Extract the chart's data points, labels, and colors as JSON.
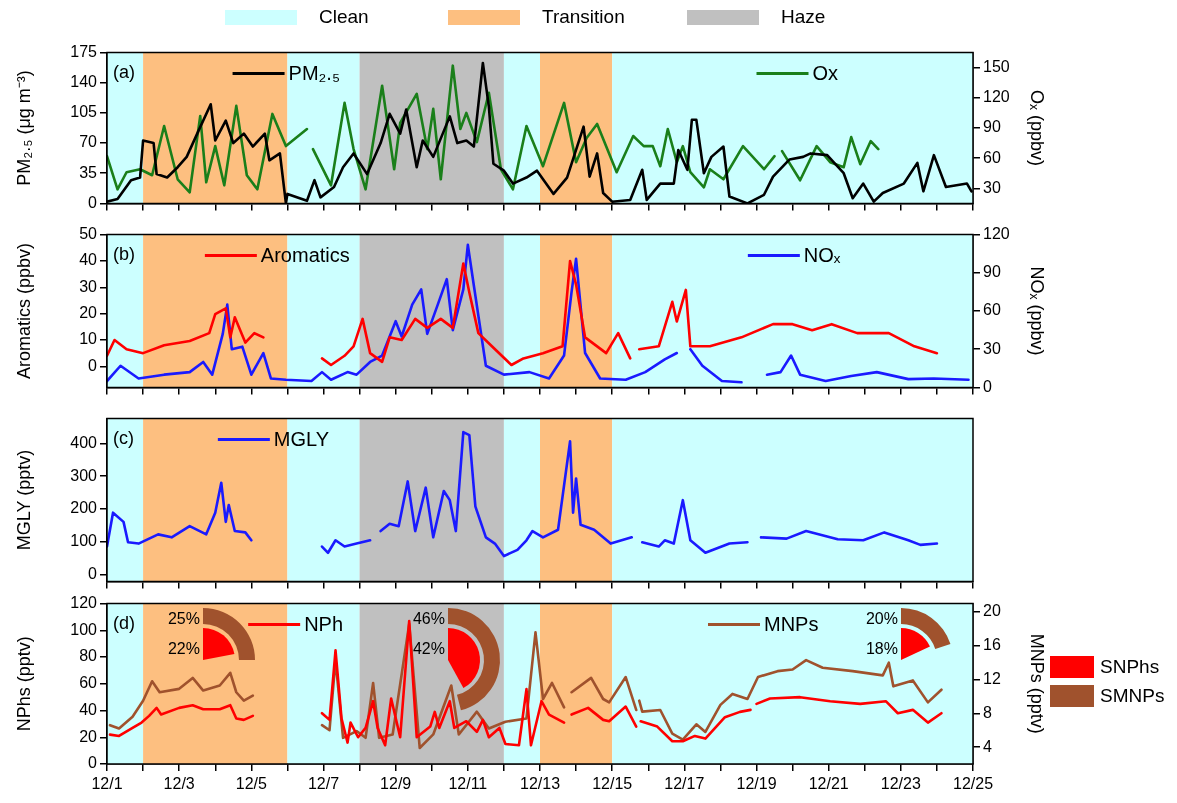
{
  "chart_data": [
    {
      "type": "line",
      "ylabel": "PM₂.₅ (μg m⁻³)",
      "y2label": "Oₓ (ppbv)",
      "annotations": [
        "(a)"
      ],
      "legend": "top",
      "tick_labels": "y",
      "xlim": [
        "--12-01",
        "--12-25"
      ],
      "xticks": [
        {
          "value": "--12-01",
          "label": null
        },
        {
          "value": "--12-02",
          "label": null
        },
        {
          "value": "--12-03",
          "label": null
        },
        {
          "value": "--12-04",
          "label": null
        },
        {
          "value": "--12-05",
          "label": null
        },
        {
          "value": "--12-06",
          "label": null
        },
        {
          "value": "--12-07",
          "label": null
        },
        {
          "value": "--12-08",
          "label": null
        },
        {
          "value": "--12-09",
          "label": null
        },
        {
          "value": "--12-10",
          "label": null
        },
        {
          "value": "--12-11",
          "label": null
        },
        {
          "value": "--12-12",
          "label": null
        },
        {
          "value": "--12-13",
          "label": null
        },
        {
          "value": "--12-14",
          "label": null
        },
        {
          "value": "--12-15",
          "label": null
        },
        {
          "value": "--12-16",
          "label": null
        },
        {
          "value": "--12-17",
          "label": null
        },
        {
          "value": "--12-18",
          "label": null
        },
        {
          "value": "--12-19",
          "label": null
        },
        {
          "value": "--12-20",
          "label": null
        },
        {
          "value": "--12-21",
          "label": null
        },
        {
          "value": "--12-22",
          "label": null
        },
        {
          "value": "--12-23",
          "label": null
        },
        {
          "value": "--12-24",
          "label": null
        },
        {
          "value": "--12-25",
          "label": null
        }
      ],
      "ylim": [
        0,
        175
      ],
      "yticks": [
        0,
        35,
        70,
        105,
        140,
        175
      ],
      "y2lim": [
        15,
        165
      ],
      "y2ticks": [
        30,
        60,
        90,
        120,
        150
      ],
      "bands": [
        {
          "axis": "x",
          "from": "--12-01",
          "to": "--12-02",
          "label": "Clean",
          "color": "#ccffff"
        },
        {
          "axis": "x",
          "from": "--12-02",
          "to": "--12-06",
          "label": "Transition",
          "color": "#fdbf80"
        },
        {
          "axis": "x",
          "from": "--12-06",
          "to": "--12-08",
          "color": "#ccffff"
        },
        {
          "axis": "x",
          "from": "--12-08",
          "to": "--12-12",
          "label": "Haze",
          "color": "#c0c0c0"
        },
        {
          "axis": "x",
          "from": "--12-12",
          "to": "--12-13",
          "color": "#ccffff"
        },
        {
          "axis": "x",
          "from": "--12-13",
          "to": "--12-15",
          "color": "#fdbf80"
        },
        {
          "axis": "x",
          "from": "--12-15",
          "to": "--12-25",
          "color": "#ccffff"
        }
      ],
      "series": [
        {
          "name": "PM₂.₅",
          "color": "#000000",
          "x": [
            "--12-01T00:00",
            "--12-01T07:00",
            "--12-01T16:00",
            "--12-01T22:00",
            "--12-02T00:00",
            "--12-02T07:00",
            "--12-02T09:00",
            "--12-02T16:00",
            "--12-02T23:00",
            "--12-03T05:00",
            "--12-03T12:00",
            "--12-03T21:00",
            "--12-04T00:00",
            "--12-04T07:00",
            "--12-04T12:00",
            "--12-04T19:00",
            "--12-05T01:00",
            "--12-05T09:00",
            "--12-05T12:00",
            "--12-05T19:00",
            "--12-05T23:00",
            "--12-06T00:00",
            "--12-06T13:00",
            "--12-06T18:00",
            "--12-06T22:00",
            "--12-07T07:00",
            "--12-07T13:00",
            "--12-07T20:00",
            "--12-08T05:00",
            "--12-08T14:00",
            "--12-08T20:00",
            "--12-09T03:00",
            "--12-09T07:00",
            "--12-09T14:00",
            "--12-09T18:00",
            "--12-10T01:00",
            "--12-10T12:00",
            "--12-10T17:00",
            "--12-10T23:00",
            "--12-11T04:00",
            "--12-11T10:00",
            "--12-11T14:00",
            "--12-11T17:00",
            "--12-12T00:00",
            "--12-12T06:00",
            "--12-12T15:00",
            "--12-12T22:00",
            "--12-13T09:00",
            "--12-13T18:00",
            "--12-14T05:00",
            "--12-14T09:00",
            "--12-14T14:00",
            "--12-14T18:00",
            "--12-15T00:00",
            "--12-15T12:00",
            "--12-15T20:00",
            "--12-15T23:00",
            "--12-16T08:00",
            "--12-16T17:00",
            "--12-16T20:00",
            "--12-17T02:00",
            "--12-17T05:00",
            "--12-17T08:00",
            "--12-17T13:00",
            "--12-17T18:00",
            "--12-18T02:00",
            "--12-18T06:00",
            "--12-18T18:00",
            "--12-19T05:00",
            "--12-19T11:00",
            "--12-19T22:00",
            "--12-20T07:00",
            "--12-20T12:00",
            "--12-20T23:00",
            "--12-21T10:00",
            "--12-21T16:00",
            "--12-21T23:00",
            "--12-22T06:00",
            "--12-22T12:00",
            "--12-23T02:00",
            "--12-23T11:00",
            "--12-23T15:00",
            "--12-23T22:00",
            "--12-24T06:00",
            "--12-24T20:00",
            "--12-24T23:00"
          ],
          "values": [
            2,
            5,
            27,
            30,
            73,
            70,
            34,
            30,
            42,
            54,
            81,
            115,
            73,
            96,
            70,
            81,
            66,
            81,
            50,
            58,
            0,
            11,
            3,
            27,
            7,
            19,
            42,
            58,
            34,
            70,
            104,
            81,
            109,
            42,
            73,
            54,
            101,
            70,
            73,
            66,
            163,
            112,
            46,
            38,
            23,
            30,
            38,
            11,
            30,
            89,
            31,
            58,
            12,
            2,
            4,
            39,
            4,
            23,
            23,
            62,
            39,
            97,
            97,
            35,
            54,
            66,
            8,
            0,
            10,
            31,
            51,
            54,
            58,
            56,
            35,
            6,
            23,
            2,
            12,
            23,
            47,
            14,
            56,
            19,
            23,
            14
          ]
        },
        {
          "name": "Ox",
          "color": "#1a7f1a",
          "axis": "y2",
          "x": [
            "--12-01T00:00",
            "--12-01T07:00",
            "--12-01T13:00",
            "--12-01T22:00",
            "--12-02T06:00",
            "--12-02T14:00",
            "--12-02T23:00",
            "--12-03T07:00",
            "--12-03T14:00",
            "--12-03T18:00",
            "--12-04T00:00",
            "--12-04T06:00",
            "--12-04T14:00",
            "--12-04T21:00",
            "--12-05T04:00",
            "--12-05T14:00",
            "--12-05T23:00",
            "--12-06T13:00",
            "--12-06T15:00",
            "--12-06T17:00",
            "--12-07T05:00",
            "--12-07T14:00",
            "--12-07T20:00",
            "--12-08T04:00",
            "--12-08T15:00",
            "--12-08T23:00",
            "--12-09T03:00",
            "--12-09T14:00",
            "--12-09T21:00",
            "--12-10T01:00",
            "--12-10T06:00",
            "--12-10T14:00",
            "--12-10T19:00",
            "--12-10T23:00",
            "--12-11T06:00",
            "--12-11T14:00",
            "--12-11T22:00",
            "--12-12T06:00",
            "--12-12T15:00",
            "--12-13T02:00",
            "--12-13T16:00",
            "--12-14T00:00",
            "--12-14T07:00",
            "--12-14T14:00",
            "--12-15T03:00",
            "--12-15T14:00",
            "--12-15T21:00",
            "--12-16T03:00",
            "--12-16T08:00",
            "--12-16T13:00",
            "--12-16T19:00",
            "--12-16T23:00",
            "--12-17T04:00",
            "--12-17T13:00",
            "--12-17T17:00",
            "--12-18T02:00",
            "--12-18T15:00",
            "--12-19T05:00",
            "--12-19T12:00",
            "--12-19T14:00",
            "--12-19T17:00",
            "--12-20T05:00",
            "--12-20T16:00",
            "--12-21T01:00",
            "--12-21T10:00",
            "--12-21T15:00",
            "--12-21T21:00",
            "--12-22T04:00",
            "--12-22T09:00"
          ],
          "values": [
            62,
            29,
            46,
            49,
            43,
            92,
            39,
            26,
            102,
            36,
            72,
            33,
            112,
            43,
            29,
            104,
            72,
            89,
            null,
            69,
            33,
            115,
            69,
            29,
            132,
            49,
            95,
            124,
            69,
            109,
            39,
            152,
            89,
            105,
            76,
            125,
            49,
            29,
            92,
            52,
            115,
            56,
            80,
            94,
            46,
            82,
            72,
            72,
            52,
            89,
            56,
            72,
            46,
            31,
            49,
            39,
            72,
            49,
            62,
            null,
            67,
            38,
            72,
            56,
            51,
            81,
            54,
            77,
            69
          ]
        }
      ]
    },
    {
      "type": "line",
      "ylabel": "Aromatics (ppbv)",
      "y2label": "NOₓ (ppbv)",
      "annotations": [
        "(b)"
      ],
      "legend": "top",
      "tick_labels": "y",
      "xlim": [
        "--12-01",
        "--12-25"
      ],
      "xticks": [
        {
          "value": "--12-01",
          "label": null
        },
        {
          "value": "--12-02",
          "label": null
        },
        {
          "value": "--12-03",
          "label": null
        },
        {
          "value": "--12-04",
          "label": null
        },
        {
          "value": "--12-05",
          "label": null
        },
        {
          "value": "--12-06",
          "label": null
        },
        {
          "value": "--12-07",
          "label": null
        },
        {
          "value": "--12-08",
          "label": null
        },
        {
          "value": "--12-09",
          "label": null
        },
        {
          "value": "--12-10",
          "label": null
        },
        {
          "value": "--12-11",
          "label": null
        },
        {
          "value": "--12-12",
          "label": null
        },
        {
          "value": "--12-13",
          "label": null
        },
        {
          "value": "--12-14",
          "label": null
        },
        {
          "value": "--12-15",
          "label": null
        },
        {
          "value": "--12-16",
          "label": null
        },
        {
          "value": "--12-17",
          "label": null
        },
        {
          "value": "--12-18",
          "label": null
        },
        {
          "value": "--12-19",
          "label": null
        },
        {
          "value": "--12-20",
          "label": null
        },
        {
          "value": "--12-21",
          "label": null
        },
        {
          "value": "--12-22",
          "label": null
        },
        {
          "value": "--12-23",
          "label": null
        },
        {
          "value": "--12-24",
          "label": null
        },
        {
          "value": "--12-25",
          "label": null
        }
      ],
      "ylim": [
        -8,
        50
      ],
      "yticks": [
        0,
        10,
        20,
        30,
        40,
        50
      ],
      "y2lim": [
        0,
        120
      ],
      "y2ticks": [
        0,
        30,
        60,
        90,
        120
      ],
      "bands": [
        {
          "axis": "x",
          "from": "--12-01",
          "to": "--12-02",
          "color": "#ccffff"
        },
        {
          "axis": "x",
          "from": "--12-02",
          "to": "--12-06",
          "color": "#fdbf80"
        },
        {
          "axis": "x",
          "from": "--12-06",
          "to": "--12-08",
          "color": "#ccffff"
        },
        {
          "axis": "x",
          "from": "--12-08",
          "to": "--12-12",
          "color": "#c0c0c0"
        },
        {
          "axis": "x",
          "from": "--12-12",
          "to": "--12-13",
          "color": "#ccffff"
        },
        {
          "axis": "x",
          "from": "--12-13",
          "to": "--12-15",
          "color": "#fdbf80"
        },
        {
          "axis": "x",
          "from": "--12-15",
          "to": "--12-25",
          "color": "#ccffff"
        }
      ],
      "series": [
        {
          "name": "Aromatics",
          "color": "#ff0000",
          "x": [
            "--12-01T00:00",
            "--12-01T05:00",
            "--12-01T13:00",
            "--12-02T00:00",
            "--12-02T14:00",
            "--12-03T07:00",
            "--12-03T20:00",
            "--12-04T00:00",
            "--12-04T07:00",
            "--12-04T10:00",
            "--12-04T13:00",
            "--12-04T20:00",
            "--12-05T02:00",
            "--12-05T08:00",
            "--12-06T02:00",
            "--12-06T23:00",
            "--12-07T05:00",
            "--12-07T14:00",
            "--12-07T20:00",
            "--12-08T02:00",
            "--12-08T07:00",
            "--12-08T15:00",
            "--12-08T20:00",
            "--12-09T04:00",
            "--12-09T13:00",
            "--12-09T21:00",
            "--12-10T06:00",
            "--12-10T14:00",
            "--12-10T21:00",
            "--12-11T01:00",
            "--12-11T07:00",
            "--12-11T16:00",
            "--12-12T05:00",
            "--12-12T13:00",
            "--12-13T02:00",
            "--12-13T15:00",
            "--12-13T20:00",
            "--12-14T00:00",
            "--12-14T06:00",
            "--12-14T20:00",
            "--12-15T04:00",
            "--12-15T12:00",
            "--12-15T14:00",
            "--12-15T18:00",
            "--12-16T07:00",
            "--12-16T16:00",
            "--12-16T19:00",
            "--12-17T01:00",
            "--12-17T04:00",
            "--12-17T17:00",
            "--12-18T14:00",
            "--12-19T11:00",
            "--12-20T00:00",
            "--12-20T13:00",
            "--12-21T02:00",
            "--12-21T19:00",
            "--12-22T16:00",
            "--12-23T09:00",
            "--12-24T00:00"
          ],
          "values": [
            4,
            10,
            6.5,
            5,
            8,
            9.6,
            12.6,
            19.8,
            22,
            11,
            18.6,
            9,
            12.6,
            11,
            null,
            3,
            0.5,
            4,
            7.6,
            18,
            5,
            1.7,
            11,
            10,
            18,
            14.6,
            18,
            14.6,
            39,
            28,
            12.6,
            7.6,
            0.5,
            3,
            5,
            7.6,
            40,
            31,
            11,
            5,
            12.6,
            3,
            null,
            6.5,
            7.6,
            24.5,
            17,
            29,
            7.6,
            7.6,
            11,
            16,
            16,
            13.7,
            16,
            12.6,
            12.6,
            7.6,
            5
          ]
        },
        {
          "name": "NOₓ",
          "color": "#1a1aff",
          "axis": "y2",
          "x": [
            "--12-01T00:00",
            "--12-01T09:00",
            "--12-01T21:00",
            "--12-02T14:00",
            "--12-03T07:00",
            "--12-03T16:00",
            "--12-03T22:00",
            "--12-04T05:00",
            "--12-04T08:00",
            "--12-04T11:00",
            "--12-04T18:00",
            "--12-05T00:00",
            "--12-05T08:00",
            "--12-05T13:00",
            "--12-05T23:00",
            "--12-06T16:00",
            "--12-06T23:00",
            "--12-07T05:00",
            "--12-07T16:00",
            "--12-07T22:00",
            "--12-08T07:00",
            "--12-08T15:00",
            "--12-09T00:00",
            "--12-09T04:00",
            "--12-09T11:00",
            "--12-09T17:00",
            "--12-09T21:00",
            "--12-10T04:00",
            "--12-10T10:00",
            "--12-10T14:00",
            "--12-10T21:00",
            "--12-11T00:00",
            "--12-11T04:00",
            "--12-11T12:00",
            "--12-12T00:00",
            "--12-12T17:00",
            "--12-13T06:00",
            "--12-13T16:00",
            "--12-13T21:00",
            "--12-14T00:00",
            "--12-14T06:00",
            "--12-14T16:00",
            "--12-15T09:00",
            "--12-15T22:00",
            "--12-16T11:00",
            "--12-16T19:00",
            "--12-17T00:00",
            "--12-17T04:00",
            "--12-17T12:00",
            "--12-18T01:00",
            "--12-18T14:00",
            "--12-19T05:00",
            "--12-19T07:00",
            "--12-19T16:00",
            "--12-19T23:00",
            "--12-20T05:00",
            "--12-20T22:00",
            "--12-21T15:00",
            "--12-22T08:00",
            "--12-23T05:00",
            "--12-23T22:00",
            "--12-24T21:00"
          ],
          "values": [
            5,
            17,
            7,
            10,
            12,
            20,
            10,
            42,
            65,
            30,
            32,
            10,
            27,
            7,
            6,
            5,
            12,
            6,
            12,
            10,
            20,
            25,
            52,
            40,
            65,
            77,
            42,
            65,
            85,
            45,
            77,
            112,
            80,
            17,
            10,
            12,
            7,
            25,
            75,
            101,
            27,
            7,
            6,
            12,
            22,
            27,
            null,
            30,
            17,
            5,
            4,
            null,
            10,
            12,
            25,
            10,
            5,
            9,
            12,
            6.5,
            7,
            6
          ]
        }
      ]
    },
    {
      "type": "line",
      "ylabel": "MGLY (pptv)",
      "annotations": [
        "(c)"
      ],
      "legend": "top",
      "tick_labels": "y",
      "xlim": [
        "--12-01",
        "--12-25"
      ],
      "xticks": [
        {
          "value": "--12-01",
          "label": null
        },
        {
          "value": "--12-02",
          "label": null
        },
        {
          "value": "--12-03",
          "label": null
        },
        {
          "value": "--12-04",
          "label": null
        },
        {
          "value": "--12-05",
          "label": null
        },
        {
          "value": "--12-06",
          "label": null
        },
        {
          "value": "--12-07",
          "label": null
        },
        {
          "value": "--12-08",
          "label": null
        },
        {
          "value": "--12-09",
          "label": null
        },
        {
          "value": "--12-10",
          "label": null
        },
        {
          "value": "--12-11",
          "label": null
        },
        {
          "value": "--12-12",
          "label": null
        },
        {
          "value": "--12-13",
          "label": null
        },
        {
          "value": "--12-14",
          "label": null
        },
        {
          "value": "--12-15",
          "label": null
        },
        {
          "value": "--12-16",
          "label": null
        },
        {
          "value": "--12-17",
          "label": null
        },
        {
          "value": "--12-18",
          "label": null
        },
        {
          "value": "--12-19",
          "label": null
        },
        {
          "value": "--12-20",
          "label": null
        },
        {
          "value": "--12-21",
          "label": null
        },
        {
          "value": "--12-22",
          "label": null
        },
        {
          "value": "--12-23",
          "label": null
        },
        {
          "value": "--12-24",
          "label": null
        },
        {
          "value": "--12-25",
          "label": null
        }
      ],
      "ylim": [
        -20,
        475
      ],
      "yticks": [
        0,
        100,
        200,
        300,
        400
      ],
      "bands": [
        {
          "axis": "x",
          "from": "--12-01",
          "to": "--12-02",
          "color": "#ccffff"
        },
        {
          "axis": "x",
          "from": "--12-02",
          "to": "--12-06",
          "color": "#fdbf80"
        },
        {
          "axis": "x",
          "from": "--12-06",
          "to": "--12-08",
          "color": "#ccffff"
        },
        {
          "axis": "x",
          "from": "--12-08",
          "to": "--12-12",
          "color": "#c0c0c0"
        },
        {
          "axis": "x",
          "from": "--12-12",
          "to": "--12-13",
          "color": "#ccffff"
        },
        {
          "axis": "x",
          "from": "--12-13",
          "to": "--12-15",
          "color": "#fdbf80"
        },
        {
          "axis": "x",
          "from": "--12-15",
          "to": "--12-25",
          "color": "#ccffff"
        }
      ],
      "series": [
        {
          "name": "MGLY",
          "color": "#1a1aff",
          "x": [
            "--12-01T00:00",
            "--12-01T04:00",
            "--12-01T11:00",
            "--12-01T14:00",
            "--12-01T21:00",
            "--12-02T10:00",
            "--12-02T19:00",
            "--12-03T07:00",
            "--12-03T18:00",
            "--12-04T00:00",
            "--12-04T04:00",
            "--12-04T07:00",
            "--12-04T09:00",
            "--12-04T13:00",
            "--12-04T20:00",
            "--12-05T00:00",
            "--12-06T00:00",
            "--12-06T23:00",
            "--12-07T03:00",
            "--12-07T08:00",
            "--12-07T14:00",
            "--12-07T22:00",
            "--12-08T07:00",
            "--12-08T10:00",
            "--12-08T14:00",
            "--12-08T20:00",
            "--12-09T02:00",
            "--12-09T08:00",
            "--12-09T13:00",
            "--12-09T20:00",
            "--12-10T01:00",
            "--12-10T08:00",
            "--12-10T12:00",
            "--12-10T16:00",
            "--12-10T21:00",
            "--12-11T01:00",
            "--12-11T05:00",
            "--12-11T12:00",
            "--12-11T18:00",
            "--12-12T00:00",
            "--12-12T09:00",
            "--12-12T15:00",
            "--12-12T19:00",
            "--12-13T02:00",
            "--12-13T12:00",
            "--12-13T20:00",
            "--12-13T22:00",
            "--12-14T00:00",
            "--12-14T03:00",
            "--12-14T12:00",
            "--12-14T23:00",
            "--12-15T13:00",
            "--12-15T17:00",
            "--12-15T20:00",
            "--12-16T07:00",
            "--12-16T11:00",
            "--12-16T17:00",
            "--12-16T23:00",
            "--12-17T04:00",
            "--12-17T14:00",
            "--12-18T06:00",
            "--12-18T18:00",
            "--12-18T22:00",
            "--12-19T03:00",
            "--12-19T20:00",
            "--12-20T09:00",
            "--12-21T06:00",
            "--12-21T23:00",
            "--12-22T13:00",
            "--12-23T05:00",
            "--12-23T13:00",
            "--12-24T00:00"
          ],
          "values": [
            86,
            189,
            161,
            99,
            95,
            123,
            114,
            148,
            123,
            189,
            280,
            161,
            212,
            133,
            129,
            105,
            null,
            86,
            67,
            105,
            86,
            95,
            105,
            null,
            133,
            155,
            148,
            284,
            133,
            265,
            114,
            255,
            227,
            133,
            434,
            425,
            208,
            114,
            95,
            57,
            76,
            105,
            133,
            114,
            137,
            406,
            189,
            293,
            152,
            137,
            95,
            114,
            null,
            99,
            86,
            105,
            95,
            227,
            105,
            67,
            95,
            99,
            null,
            114,
            110,
            133,
            108,
            105,
            129,
            105,
            91,
            95
          ]
        }
      ]
    },
    {
      "type": "line",
      "ylabel": "NPhs (pptv)",
      "y2label": "MNPs (pptv)",
      "annotations": [
        "(d)"
      ],
      "legend": "top",
      "xlim": [
        "--12-01",
        "--12-25"
      ],
      "xticks": [
        {
          "value": "--12-01",
          "label": "12/1"
        },
        {
          "value": "--12-02",
          "label": null
        },
        {
          "value": "--12-03",
          "label": "12/3"
        },
        {
          "value": "--12-04",
          "label": null
        },
        {
          "value": "--12-05",
          "label": "12/5"
        },
        {
          "value": "--12-06",
          "label": null
        },
        {
          "value": "--12-07",
          "label": "12/7"
        },
        {
          "value": "--12-08",
          "label": null
        },
        {
          "value": "--12-09",
          "label": "12/9"
        },
        {
          "value": "--12-10",
          "label": null
        },
        {
          "value": "--12-11",
          "label": "12/11"
        },
        {
          "value": "--12-12",
          "label": null
        },
        {
          "value": "--12-13",
          "label": "12/13"
        },
        {
          "value": "--12-14",
          "label": null
        },
        {
          "value": "--12-15",
          "label": "12/15"
        },
        {
          "value": "--12-16",
          "label": null
        },
        {
          "value": "--12-17",
          "label": "12/17"
        },
        {
          "value": "--12-18",
          "label": null
        },
        {
          "value": "--12-19",
          "label": "12/19"
        },
        {
          "value": "--12-20",
          "label": null
        },
        {
          "value": "--12-21",
          "label": "12/21"
        },
        {
          "value": "--12-22",
          "label": null
        },
        {
          "value": "--12-23",
          "label": "12/23"
        },
        {
          "value": "--12-24",
          "label": null
        },
        {
          "value": "--12-25",
          "label": "12/25"
        }
      ],
      "ylim": [
        0,
        120
      ],
      "yticks": [
        0,
        20,
        40,
        60,
        80,
        100,
        120
      ],
      "y2lim": [
        2,
        21
      ],
      "y2ticks": [
        4,
        8,
        12,
        16,
        20
      ],
      "bands": [
        {
          "axis": "x",
          "from": "--12-01",
          "to": "--12-02",
          "color": "#ccffff"
        },
        {
          "axis": "x",
          "from": "--12-02",
          "to": "--12-06",
          "color": "#fdbf80"
        },
        {
          "axis": "x",
          "from": "--12-06",
          "to": "--12-08",
          "color": "#ccffff"
        },
        {
          "axis": "x",
          "from": "--12-08",
          "to": "--12-12",
          "color": "#c0c0c0"
        },
        {
          "axis": "x",
          "from": "--12-12",
          "to": "--12-13",
          "color": "#ccffff"
        },
        {
          "axis": "x",
          "from": "--12-13",
          "to": "--12-15",
          "color": "#fdbf80"
        },
        {
          "axis": "x",
          "from": "--12-15",
          "to": "--12-25",
          "color": "#ccffff"
        }
      ],
      "series": [
        {
          "name": "NPh",
          "color": "#ff0000",
          "x": [
            "--12-01T02:00",
            "--12-01T08:00",
            "--12-01T17:00",
            "--12-01T23:00",
            "--12-02T04:00",
            "--12-02T09:00",
            "--12-02T12:00",
            "--12-03T00:00",
            "--12-03T09:00",
            "--12-03T16:00",
            "--12-04T03:00",
            "--12-04T10:00",
            "--12-04T14:00",
            "--12-04T19:00",
            "--12-05T01:00",
            "--12-06T00:00",
            "--12-06T23:00",
            "--12-07T04:00",
            "--12-07T08:00",
            "--12-07T12:00",
            "--12-07T16:00",
            "--12-07T18:00",
            "--12-07T23:00",
            "--12-08T04:00",
            "--12-08T09:00",
            "--12-08T12:00",
            "--12-08T17:00",
            "--12-08T21:00",
            "--12-09T03:00",
            "--12-09T09:00",
            "--12-09T14:00",
            "--12-09T23:00",
            "--12-10T02:00",
            "--12-10T05:00",
            "--12-10T12:00",
            "--12-10T15:00",
            "--12-10T23:00",
            "--12-11T06:00",
            "--12-11T10:00",
            "--12-11T14:00",
            "--12-11T21:00",
            "--12-12T01:00",
            "--12-12T10:00",
            "--12-12T15:00",
            "--12-12T18:00",
            "--12-13T01:00",
            "--12-13T06:00",
            "--12-13T16:00",
            "--12-13T18:00",
            "--12-13T21:00",
            "--12-14T08:00",
            "--12-14T18:00",
            "--12-14T22:00",
            "--12-15T09:00",
            "--12-15T16:00",
            "--12-15T18:00",
            "--12-15T19:00",
            "--12-16T06:00",
            "--12-16T16:00",
            "--12-16T23:00",
            "--12-17T07:00",
            "--12-17T14:00",
            "--12-18T03:00",
            "--12-18T13:00",
            "--12-18T20:00",
            "--12-18T22:00",
            "--12-19T00:00",
            "--12-19T09:00",
            "--12-20T05:00",
            "--12-21T01:00",
            "--12-21T21:00",
            "--12-22T14:00",
            "--12-22T22:00",
            "--12-23T08:00",
            "--12-23T18:00",
            "--12-24T03:00"
          ],
          "values": [
            22,
            21,
            27,
            31,
            36,
            42,
            37,
            42,
            44,
            41,
            41,
            44,
            34,
            33,
            36,
            null,
            38,
            33,
            85,
            34,
            16,
            31,
            20,
            27,
            47,
            27,
            14,
            49,
            20,
            107,
            20,
            28,
            39,
            27,
            47,
            27,
            32,
            24,
            33,
            20,
            27,
            15,
            14,
            56,
            14,
            47,
            37,
            31,
            null,
            37,
            42,
            33,
            32,
            43,
            28,
            null,
            32,
            28,
            17,
            17,
            21,
            19,
            35,
            39,
            40.5,
            null,
            45,
            49,
            50,
            47,
            45,
            47,
            38,
            40.5,
            31,
            38
          ]
        },
        {
          "name": "MNPs",
          "color": "#a0522d",
          "axis": "y2",
          "x": [
            "--12-01T02:00",
            "--12-01T08:00",
            "--12-01T17:00",
            "--12-02T00:00",
            "--12-02T06:00",
            "--12-02T11:00",
            "--12-03T00:00",
            "--12-03T09:00",
            "--12-03T16:00",
            "--12-04T03:00",
            "--12-04T10:00",
            "--12-04T14:00",
            "--12-04T19:00",
            "--12-05T01:00",
            "--12-06T00:00",
            "--12-06T23:00",
            "--12-07T04:00",
            "--12-07T08:00",
            "--12-07T13:00",
            "--12-07T22:00",
            "--12-08T04:00",
            "--12-08T09:00",
            "--12-08T13:00",
            "--12-08T22:00",
            "--12-09T09:00",
            "--12-09T16:00",
            "--12-10T01:00",
            "--12-10T13:00",
            "--12-10T18:00",
            "--12-11T06:00",
            "--12-11T14:00",
            "--12-12T01:00",
            "--12-12T15:00",
            "--12-12T21:00",
            "--12-13T02:00",
            "--12-13T08:00",
            "--12-13T16:00",
            "--12-13T18:00",
            "--12-13T21:00",
            "--12-14T10:00",
            "--12-14T18:00",
            "--12-14T22:00",
            "--12-15T09:00",
            "--12-15T16:00",
            "--12-15T17:00",
            "--12-15T18:00",
            "--12-15T20:00",
            "--12-16T08:00",
            "--12-16T16:00",
            "--12-16T23:00",
            "--12-17T08:00",
            "--12-17T14:00",
            "--12-18T00:00",
            "--12-18T08:00",
            "--12-18T18:00",
            "--12-19T01:00",
            "--12-19T14:00",
            "--12-20T00:00",
            "--12-20T09:00",
            "--12-20T20:00",
            "--12-21T16:00",
            "--12-22T12:00",
            "--12-22T16:00",
            "--12-22T19:00",
            "--12-23T08:00",
            "--12-23T18:00",
            "--12-24T03:00"
          ],
          "values": [
            6.6,
            6.2,
            7.6,
            9.5,
            11.8,
            10.5,
            10.9,
            12.2,
            10.7,
            11.3,
            12.8,
            10.5,
            9.5,
            10.1,
            null,
            6.6,
            6,
            14.3,
            5.1,
            5.9,
            5.1,
            11.6,
            5.1,
            5.5,
            18.6,
            3.9,
            5.5,
            11.3,
            5.5,
            8.2,
            6.2,
            7,
            7.4,
            17.6,
            9.7,
            11.6,
            8.7,
            null,
            10.5,
            12.2,
            9.7,
            9.3,
            12.3,
            8.4,
            null,
            9.5,
            8.2,
            8.4,
            5.6,
            4.9,
            6.7,
            5.8,
            9,
            10.3,
            9.7,
            12.3,
            13,
            13.2,
            14.3,
            13.4,
            13,
            12.5,
            14,
            11.2,
            11.9,
            9.3,
            10.8
          ]
        }
      ]
    },
    {
      "type": "other",
      "categories": [
        "SNPhs",
        "SMNPs"
      ],
      "colors": [
        "#ff0000",
        "#a0522d"
      ],
      "series": [
        {
          "values": [
            22,
            25
          ],
          "value_labels": [
            "22%",
            "25%"
          ]
        },
        {
          "values": [
            42,
            46
          ],
          "value_labels": [
            "42%",
            "46%"
          ]
        },
        {
          "values": [
            18,
            20
          ],
          "value_labels": [
            "18%",
            "20%"
          ]
        }
      ]
    }
  ]
}
